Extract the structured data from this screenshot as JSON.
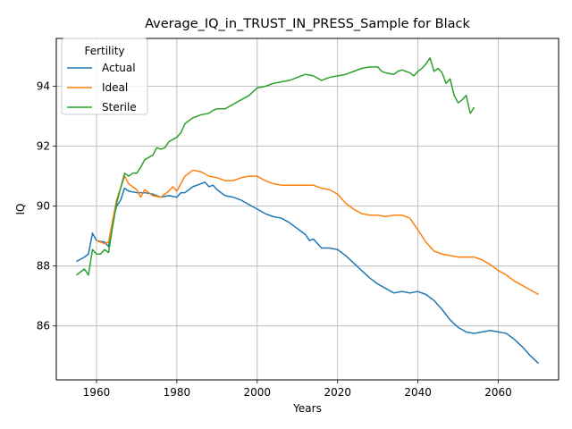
{
  "chart_data": {
    "type": "line",
    "title": "Average_IQ_in_TRUST_IN_PRESS_Sample for Black",
    "xlabel": "Years",
    "ylabel": "IQ",
    "xlim": [
      1950,
      2075
    ],
    "ylim": [
      84.2,
      95.6
    ],
    "xticks": [
      1960,
      1980,
      2000,
      2020,
      2040,
      2060
    ],
    "yticks": [
      86,
      88,
      90,
      92,
      94
    ],
    "grid": true,
    "legend": {
      "title": "Fertility",
      "position": "top-left"
    },
    "series": [
      {
        "name": "Actual",
        "color": "#1f77b4",
        "x": [
          1955,
          1957,
          1958,
          1959,
          1960,
          1962,
          1963,
          1964,
          1965,
          1966,
          1967,
          1968,
          1970,
          1972,
          1974,
          1976,
          1978,
          1980,
          1981,
          1982,
          1984,
          1986,
          1987,
          1988,
          1989,
          1990,
          1992,
          1994,
          1996,
          1998,
          2000,
          2002,
          2004,
          2006,
          2008,
          2010,
          2012,
          2013,
          2014,
          2016,
          2018,
          2020,
          2022,
          2024,
          2026,
          2028,
          2030,
          2032,
          2034,
          2036,
          2038,
          2040,
          2042,
          2044,
          2046,
          2048,
          2050,
          2052,
          2054,
          2056,
          2058,
          2060,
          2062,
          2064,
          2066,
          2068,
          2070
        ],
        "y": [
          88.15,
          88.3,
          88.4,
          89.1,
          88.85,
          88.8,
          88.65,
          89.5,
          90.0,
          90.2,
          90.6,
          90.5,
          90.45,
          90.45,
          90.4,
          90.3,
          90.35,
          90.3,
          90.45,
          90.45,
          90.65,
          90.75,
          90.8,
          90.65,
          90.7,
          90.55,
          90.35,
          90.3,
          90.2,
          90.05,
          89.9,
          89.75,
          89.65,
          89.6,
          89.45,
          89.25,
          89.05,
          88.85,
          88.9,
          88.6,
          88.6,
          88.55,
          88.35,
          88.1,
          87.85,
          87.6,
          87.4,
          87.25,
          87.1,
          87.15,
          87.1,
          87.15,
          87.05,
          86.85,
          86.55,
          86.2,
          85.95,
          85.8,
          85.75,
          85.8,
          85.85,
          85.8,
          85.75,
          85.55,
          85.3,
          85.0,
          84.75
        ]
      },
      {
        "name": "Ideal",
        "color": "#ff7f0e",
        "x": [
          1960,
          1962,
          1963,
          1964,
          1965,
          1966,
          1967,
          1968,
          1970,
          1971,
          1972,
          1974,
          1976,
          1978,
          1979,
          1980,
          1982,
          1984,
          1986,
          1988,
          1990,
          1992,
          1994,
          1996,
          1998,
          2000,
          2002,
          2004,
          2006,
          2008,
          2010,
          2012,
          2014,
          2016,
          2018,
          2020,
          2022,
          2024,
          2026,
          2028,
          2030,
          2032,
          2034,
          2036,
          2038,
          2040,
          2042,
          2044,
          2046,
          2048,
          2050,
          2052,
          2054,
          2056,
          2058,
          2060,
          2062,
          2064,
          2066,
          2068,
          2070
        ],
        "y": [
          88.85,
          88.75,
          88.8,
          89.5,
          90.2,
          90.6,
          91.0,
          90.75,
          90.55,
          90.3,
          90.55,
          90.35,
          90.3,
          90.5,
          90.65,
          90.5,
          91.0,
          91.2,
          91.15,
          91.0,
          90.95,
          90.85,
          90.85,
          90.95,
          91.0,
          91.0,
          90.85,
          90.75,
          90.7,
          90.7,
          90.7,
          90.7,
          90.7,
          90.6,
          90.55,
          90.4,
          90.1,
          89.9,
          89.75,
          89.7,
          89.7,
          89.65,
          89.7,
          89.7,
          89.6,
          89.2,
          88.8,
          88.5,
          88.4,
          88.35,
          88.3,
          88.3,
          88.3,
          88.2,
          88.05,
          87.85,
          87.7,
          87.5,
          87.35,
          87.2,
          87.05
        ]
      },
      {
        "name": "Sterile",
        "color": "#2ca02c",
        "x": [
          1955,
          1956,
          1957,
          1958,
          1959,
          1960,
          1961,
          1962,
          1963,
          1964,
          1965,
          1966,
          1967,
          1968,
          1969,
          1970,
          1971,
          1972,
          1974,
          1975,
          1976,
          1977,
          1978,
          1980,
          1981,
          1982,
          1984,
          1985,
          1986,
          1988,
          1989,
          1990,
          1992,
          1994,
          1996,
          1998,
          2000,
          2002,
          2004,
          2006,
          2008,
          2010,
          2012,
          2014,
          2016,
          2018,
          2020,
          2022,
          2024,
          2026,
          2028,
          2030,
          2031,
          2032,
          2034,
          2035,
          2036,
          2038,
          2039,
          2040,
          2041,
          2042,
          2043,
          2044,
          2045,
          2046,
          2047,
          2048,
          2049,
          2050,
          2051,
          2052,
          2053,
          2054
        ],
        "y": [
          87.7,
          87.8,
          87.9,
          87.7,
          88.55,
          88.4,
          88.4,
          88.55,
          88.45,
          89.3,
          90.1,
          90.6,
          91.1,
          91.0,
          91.1,
          91.1,
          91.3,
          91.55,
          91.7,
          91.95,
          91.9,
          91.95,
          92.15,
          92.3,
          92.45,
          92.75,
          92.95,
          93.0,
          93.05,
          93.1,
          93.2,
          93.25,
          93.25,
          93.4,
          93.55,
          93.7,
          93.95,
          94.0,
          94.1,
          94.15,
          94.2,
          94.3,
          94.4,
          94.35,
          94.2,
          94.3,
          94.35,
          94.4,
          94.5,
          94.6,
          94.65,
          94.65,
          94.5,
          94.45,
          94.4,
          94.5,
          94.55,
          94.45,
          94.35,
          94.5,
          94.6,
          94.75,
          94.95,
          94.5,
          94.6,
          94.45,
          94.1,
          94.25,
          93.7,
          93.45,
          93.55,
          93.7,
          93.1,
          93.3
        ]
      }
    ]
  }
}
